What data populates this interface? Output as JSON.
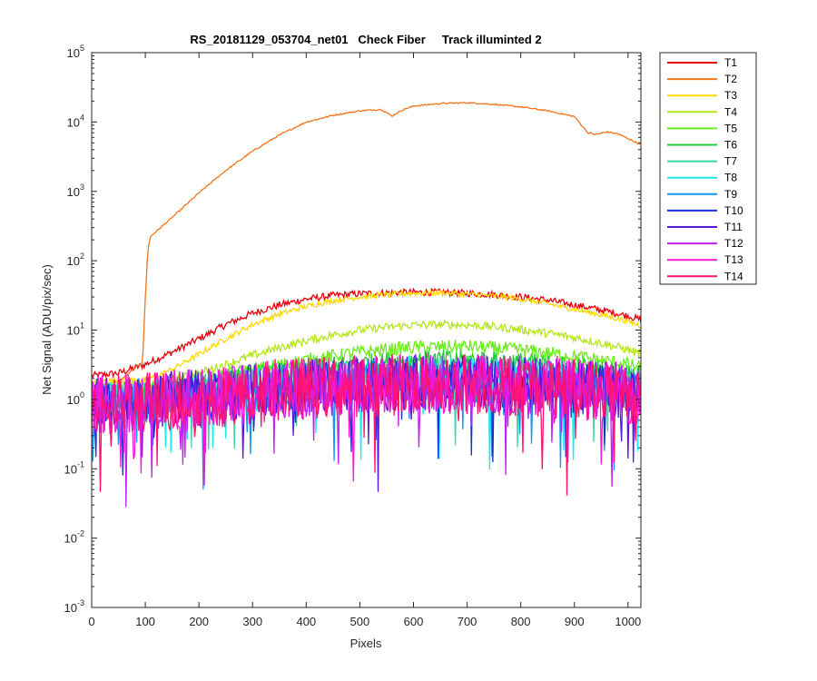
{
  "chart_data": {
    "type": "line",
    "title": "RS_20181129_053704_net01   Check Fiber     Track illuminted 2",
    "xlabel": "Pixels",
    "ylabel": "Net Signal (ADU/pix/sec)",
    "xlim": [
      0,
      1024
    ],
    "ylim": [
      0.001,
      100000
    ],
    "yscale": "log",
    "grid": false,
    "legend_position": "outside-top-right",
    "x_ticks": [
      0,
      100,
      200,
      300,
      400,
      500,
      600,
      700,
      800,
      900,
      1000
    ],
    "x_tick_labels": [
      "0",
      "100",
      "200",
      "300",
      "400",
      "500",
      "600",
      "700",
      "800",
      "900",
      "1000"
    ],
    "y_ticks": [
      0.001,
      0.01,
      0.1,
      1,
      10,
      100,
      1000,
      10000,
      100000
    ],
    "y_tick_labels": [
      {
        "base": "10",
        "exp": "-3"
      },
      {
        "base": "10",
        "exp": "-2"
      },
      {
        "base": "10",
        "exp": "-1"
      },
      {
        "base": "10",
        "exp": "0"
      },
      {
        "base": "10",
        "exp": "1"
      },
      {
        "base": "10",
        "exp": "2"
      },
      {
        "base": "10",
        "exp": "3"
      },
      {
        "base": "10",
        "exp": "4"
      },
      {
        "base": "10",
        "exp": "5"
      }
    ],
    "series": [
      {
        "name": "T1",
        "color": "#e8000b",
        "x": [
          0,
          50,
          100,
          150,
          200,
          250,
          300,
          350,
          400,
          450,
          500,
          550,
          600,
          650,
          700,
          750,
          800,
          850,
          900,
          950,
          1000,
          1024
        ],
        "y": [
          2.2,
          2.4,
          3.2,
          4.8,
          7.5,
          12,
          17.5,
          23,
          28,
          31.5,
          33.5,
          34.5,
          35,
          35,
          34,
          32.5,
          30,
          27,
          23,
          19.5,
          16,
          14
        ]
      },
      {
        "name": "T2",
        "color": "#f4761b",
        "x": [
          0,
          50,
          95,
          100,
          105,
          110,
          150,
          200,
          250,
          300,
          350,
          400,
          450,
          500,
          540,
          560,
          580,
          600,
          650,
          700,
          750,
          800,
          850,
          900,
          925,
          940,
          960,
          980,
          1000,
          1024
        ],
        "y": [
          1.5,
          1.8,
          3.5,
          30,
          150,
          225,
          420,
          950,
          2000,
          3800,
          6500,
          10000,
          12500,
          14500,
          15200,
          12200,
          15000,
          17000,
          18500,
          19000,
          18000,
          16500,
          14500,
          12000,
          7000,
          6600,
          7200,
          6800,
          5800,
          4700
        ]
      },
      {
        "name": "T3",
        "color": "#ffd800",
        "x": [
          0,
          50,
          100,
          150,
          200,
          250,
          300,
          350,
          400,
          450,
          500,
          550,
          600,
          650,
          700,
          750,
          800,
          850,
          900,
          950,
          1000,
          1024
        ],
        "y": [
          1.8,
          1.9,
          1.9,
          2.7,
          4.5,
          7.5,
          12,
          17,
          22,
          26.5,
          30,
          32.5,
          34,
          34.5,
          33,
          31,
          28,
          24,
          20,
          16.5,
          13.5,
          11.5
        ]
      },
      {
        "name": "T4",
        "color": "#b5e61d",
        "x": [
          0,
          50,
          100,
          150,
          200,
          250,
          300,
          350,
          400,
          450,
          500,
          550,
          600,
          650,
          700,
          750,
          800,
          850,
          900,
          950,
          1000,
          1024
        ],
        "y": [
          1.5,
          1.6,
          1.6,
          1.9,
          2.4,
          3.2,
          4.3,
          5.6,
          7,
          8.5,
          10,
          11,
          11.8,
          12,
          11.8,
          11.2,
          10.2,
          9,
          7.8,
          6.5,
          5.2,
          4.5
        ]
      },
      {
        "name": "T5",
        "color": "#6bed1c",
        "x": [
          0,
          100,
          200,
          300,
          400,
          500,
          600,
          700,
          800,
          900,
          1000,
          1024
        ],
        "y": [
          1.3,
          1.4,
          1.9,
          2.7,
          3.7,
          4.8,
          5.6,
          5.8,
          5.2,
          4.2,
          3.2,
          2.8
        ]
      },
      {
        "name": "T6",
        "color": "#22cc35",
        "x": [
          0,
          100,
          200,
          300,
          400,
          500,
          600,
          700,
          800,
          900,
          1000,
          1024
        ],
        "y": [
          1.2,
          1.3,
          1.6,
          2.2,
          2.8,
          3.3,
          3.7,
          3.8,
          3.5,
          3.0,
          2.4,
          2.2
        ]
      },
      {
        "name": "T7",
        "color": "#3ed6a8",
        "x": [
          0,
          100,
          200,
          300,
          400,
          500,
          600,
          700,
          800,
          900,
          1000,
          1024
        ],
        "y": [
          1.1,
          1.2,
          1.4,
          1.8,
          2.2,
          2.5,
          2.7,
          2.7,
          2.5,
          2.2,
          1.9,
          1.7
        ]
      },
      {
        "name": "T8",
        "color": "#1ee8ee",
        "x": [
          0,
          100,
          200,
          300,
          400,
          500,
          600,
          700,
          800,
          900,
          1000,
          1024
        ],
        "y": [
          1.0,
          1.1,
          1.3,
          1.6,
          1.9,
          2.1,
          2.3,
          2.3,
          2.1,
          1.9,
          1.6,
          1.5
        ]
      },
      {
        "name": "T9",
        "color": "#1495f2",
        "x": [
          0,
          100,
          200,
          300,
          400,
          500,
          600,
          700,
          800,
          900,
          1000,
          1024
        ],
        "y": [
          0.95,
          1.0,
          1.2,
          1.4,
          1.6,
          1.8,
          1.9,
          1.9,
          1.8,
          1.6,
          1.4,
          1.3
        ]
      },
      {
        "name": "T10",
        "color": "#1431d6",
        "x": [
          0,
          100,
          200,
          300,
          400,
          500,
          600,
          700,
          800,
          900,
          1000,
          1024
        ],
        "y": [
          0.9,
          0.95,
          1.1,
          1.3,
          1.5,
          1.7,
          1.8,
          1.8,
          1.7,
          1.5,
          1.3,
          1.2
        ]
      },
      {
        "name": "T11",
        "color": "#5a14e0",
        "x": [
          0,
          100,
          200,
          300,
          400,
          500,
          600,
          700,
          800,
          900,
          1000,
          1024
        ],
        "y": [
          0.9,
          0.95,
          1.1,
          1.3,
          1.5,
          1.65,
          1.75,
          1.75,
          1.65,
          1.5,
          1.3,
          1.2
        ]
      },
      {
        "name": "T12",
        "color": "#c41ef0",
        "x": [
          0,
          100,
          200,
          300,
          400,
          500,
          600,
          700,
          800,
          900,
          1000,
          1024
        ],
        "y": [
          0.85,
          0.9,
          1.05,
          1.25,
          1.45,
          1.6,
          1.7,
          1.7,
          1.6,
          1.45,
          1.25,
          1.15
        ]
      },
      {
        "name": "T13",
        "color": "#f51ad2",
        "x": [
          0,
          100,
          200,
          300,
          400,
          500,
          600,
          700,
          800,
          900,
          1000,
          1024
        ],
        "y": [
          0.85,
          0.9,
          1.05,
          1.25,
          1.45,
          1.6,
          1.7,
          1.7,
          1.6,
          1.45,
          1.25,
          1.15
        ]
      },
      {
        "name": "T14",
        "color": "#ff1273",
        "x": [
          0,
          100,
          200,
          300,
          400,
          500,
          600,
          700,
          800,
          900,
          1000,
          1024
        ],
        "y": [
          0.85,
          0.9,
          1.05,
          1.25,
          1.45,
          1.6,
          1.7,
          1.7,
          1.6,
          1.45,
          1.25,
          1.15
        ]
      }
    ]
  }
}
